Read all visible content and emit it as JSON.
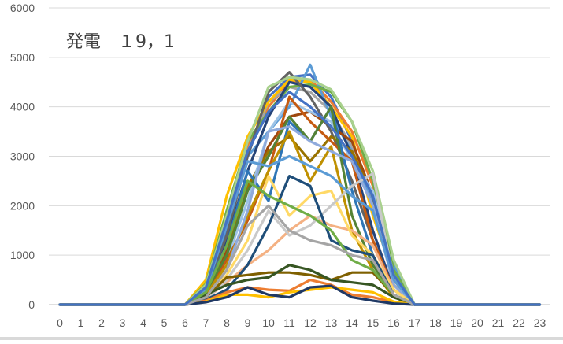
{
  "chart_data": {
    "type": "line",
    "title": "発電　１9，1",
    "xlabel": "",
    "ylabel": "",
    "x": [
      0,
      1,
      2,
      3,
      4,
      5,
      6,
      7,
      8,
      9,
      10,
      11,
      12,
      13,
      14,
      15,
      16,
      17,
      18,
      19,
      20,
      21,
      22,
      23
    ],
    "ylim": [
      0,
      6000
    ],
    "yticks": [
      0,
      1000,
      2000,
      3000,
      4000,
      5000,
      6000
    ],
    "grid": true,
    "legend": "none",
    "series": [
      {
        "color": "#4472C4",
        "values": [
          0,
          0,
          0,
          0,
          0,
          0,
          0,
          400,
          1500,
          3000,
          4200,
          4600,
          4650,
          4200,
          3300,
          2100,
          700,
          0,
          0,
          0,
          0,
          0,
          0,
          0
        ]
      },
      {
        "color": "#ED7D31",
        "values": [
          0,
          0,
          0,
          0,
          0,
          0,
          0,
          450,
          1800,
          3200,
          4000,
          4500,
          4550,
          4100,
          3500,
          2400,
          500,
          0,
          0,
          0,
          0,
          0,
          0,
          0
        ]
      },
      {
        "color": "#A5A5A5",
        "values": [
          0,
          0,
          0,
          0,
          0,
          0,
          0,
          380,
          1700,
          3100,
          4100,
          4400,
          4300,
          3900,
          3200,
          2000,
          400,
          0,
          0,
          0,
          0,
          0,
          0,
          0
        ]
      },
      {
        "color": "#FFC000",
        "values": [
          0,
          0,
          0,
          0,
          0,
          0,
          0,
          500,
          2200,
          3400,
          4100,
          4550,
          4500,
          4000,
          3400,
          1800,
          600,
          0,
          0,
          0,
          0,
          0,
          0,
          0
        ]
      },
      {
        "color": "#5B9BD5",
        "values": [
          0,
          0,
          0,
          0,
          0,
          0,
          0,
          350,
          1600,
          3000,
          3500,
          4000,
          4850,
          3800,
          3100,
          2000,
          800,
          0,
          0,
          0,
          0,
          0,
          0,
          0
        ]
      },
      {
        "color": "#70AD47",
        "values": [
          0,
          0,
          0,
          0,
          0,
          0,
          0,
          420,
          1900,
          3300,
          3900,
          4400,
          4450,
          4300,
          3700,
          2500,
          700,
          0,
          0,
          0,
          0,
          0,
          0,
          0
        ]
      },
      {
        "color": "#264478",
        "values": [
          0,
          0,
          0,
          0,
          0,
          0,
          0,
          300,
          1300,
          2700,
          3800,
          4500,
          4400,
          4000,
          3000,
          1500,
          300,
          0,
          0,
          0,
          0,
          0,
          0,
          0
        ]
      },
      {
        "color": "#9E480E",
        "values": [
          0,
          0,
          0,
          0,
          0,
          0,
          0,
          280,
          1100,
          2300,
          3200,
          3800,
          3900,
          3600,
          3300,
          2200,
          500,
          0,
          0,
          0,
          0,
          0,
          0,
          0
        ]
      },
      {
        "color": "#636363",
        "values": [
          0,
          0,
          0,
          0,
          0,
          0,
          0,
          300,
          1400,
          3000,
          4300,
          4700,
          4200,
          3500,
          2500,
          1300,
          300,
          0,
          0,
          0,
          0,
          0,
          0,
          0
        ]
      },
      {
        "color": "#997300",
        "values": [
          0,
          0,
          0,
          0,
          0,
          0,
          0,
          250,
          1000,
          2400,
          3100,
          3400,
          2900,
          3400,
          3100,
          2200,
          400,
          0,
          0,
          0,
          0,
          0,
          0,
          0
        ]
      },
      {
        "color": "#9DC3E6",
        "values": [
          0,
          0,
          0,
          0,
          0,
          0,
          0,
          200,
          900,
          2100,
          3500,
          4100,
          3900,
          3700,
          2900,
          2300,
          600,
          0,
          0,
          0,
          0,
          0,
          0,
          0
        ]
      },
      {
        "color": "#A9D18E",
        "values": [
          0,
          0,
          0,
          0,
          0,
          0,
          0,
          400,
          1800,
          3300,
          4400,
          4600,
          4550,
          4350,
          3700,
          2700,
          900,
          0,
          0,
          0,
          0,
          0,
          0,
          0
        ]
      },
      {
        "color": "#C55A11",
        "values": [
          0,
          0,
          0,
          0,
          0,
          0,
          0,
          250,
          900,
          1700,
          2700,
          4200,
          3700,
          3300,
          2900,
          1300,
          300,
          0,
          0,
          0,
          0,
          0,
          0,
          0
        ]
      },
      {
        "color": "#2E75B6",
        "values": [
          0,
          0,
          0,
          0,
          0,
          0,
          0,
          300,
          1200,
          2700,
          2100,
          3700,
          3300,
          4000,
          2300,
          1000,
          200,
          0,
          0,
          0,
          0,
          0,
          0,
          0
        ]
      },
      {
        "color": "#548235",
        "values": [
          0,
          0,
          0,
          0,
          0,
          0,
          0,
          250,
          1000,
          2300,
          3000,
          3800,
          3300,
          4000,
          1800,
          800,
          200,
          0,
          0,
          0,
          0,
          0,
          0,
          0
        ]
      },
      {
        "color": "#BF9000",
        "values": [
          0,
          0,
          0,
          0,
          0,
          0,
          0,
          200,
          800,
          1800,
          2700,
          3500,
          2500,
          3200,
          1500,
          700,
          150,
          0,
          0,
          0,
          0,
          0,
          0,
          0
        ]
      },
      {
        "color": "#8FAADC",
        "values": [
          0,
          0,
          0,
          0,
          0,
          0,
          0,
          150,
          700,
          1900,
          3500,
          3600,
          3300,
          3100,
          2900,
          2000,
          400,
          0,
          0,
          0,
          0,
          0,
          0,
          0
        ]
      },
      {
        "color": "#F4B183",
        "values": [
          0,
          0,
          0,
          0,
          0,
          0,
          0,
          120,
          450,
          800,
          1100,
          1500,
          1800,
          1600,
          1500,
          1200,
          300,
          0,
          0,
          0,
          0,
          0,
          0,
          0
        ]
      },
      {
        "color": "#FFD966",
        "values": [
          0,
          0,
          0,
          0,
          0,
          0,
          0,
          150,
          600,
          1300,
          2600,
          1800,
          2200,
          2300,
          1400,
          1000,
          300,
          0,
          0,
          0,
          0,
          0,
          0,
          0
        ]
      },
      {
        "color": "#C9C9C9",
        "values": [
          0,
          0,
          0,
          0,
          0,
          0,
          0,
          100,
          500,
          1100,
          1900,
          1400,
          1600,
          2000,
          2400,
          2650,
          500,
          0,
          0,
          0,
          0,
          0,
          0,
          0
        ]
      },
      {
        "color": "#1F4E79",
        "values": [
          0,
          0,
          0,
          0,
          0,
          0,
          0,
          100,
          300,
          800,
          1600,
          2600,
          2400,
          1300,
          1100,
          1000,
          200,
          0,
          0,
          0,
          0,
          0,
          0,
          0
        ]
      },
      {
        "color": "#7F6000",
        "values": [
          0,
          0,
          0,
          0,
          0,
          0,
          0,
          150,
          550,
          600,
          650,
          650,
          600,
          500,
          650,
          650,
          200,
          0,
          0,
          0,
          0,
          0,
          0,
          0
        ]
      },
      {
        "color": "#375623",
        "values": [
          0,
          0,
          0,
          0,
          0,
          0,
          0,
          200,
          400,
          500,
          550,
          800,
          700,
          500,
          450,
          400,
          150,
          0,
          0,
          0,
          0,
          0,
          0,
          0
        ]
      },
      {
        "color": "#ED7D31",
        "values": [
          0,
          0,
          0,
          0,
          0,
          0,
          0,
          80,
          250,
          350,
          300,
          280,
          500,
          400,
          200,
          150,
          50,
          0,
          0,
          0,
          0,
          0,
          0,
          0
        ]
      },
      {
        "color": "#FFC000",
        "values": [
          0,
          0,
          0,
          0,
          0,
          0,
          0,
          60,
          200,
          200,
          150,
          250,
          300,
          350,
          300,
          250,
          60,
          0,
          0,
          0,
          0,
          0,
          0,
          0
        ]
      },
      {
        "color": "#1F3864",
        "values": [
          0,
          0,
          0,
          0,
          0,
          0,
          0,
          50,
          150,
          350,
          200,
          150,
          350,
          380,
          150,
          80,
          20,
          0,
          0,
          0,
          0,
          0,
          0,
          0
        ]
      },
      {
        "color": "#5B9BD5",
        "values": [
          0,
          0,
          0,
          0,
          0,
          0,
          0,
          300,
          1600,
          2900,
          2800,
          3000,
          2800,
          2600,
          2200,
          1900,
          500,
          0,
          0,
          0,
          0,
          0,
          0,
          0
        ]
      },
      {
        "color": "#70AD47",
        "values": [
          0,
          0,
          0,
          0,
          0,
          0,
          0,
          250,
          1200,
          2500,
          2200,
          2000,
          1800,
          1500,
          900,
          700,
          200,
          0,
          0,
          0,
          0,
          0,
          0,
          0
        ]
      },
      {
        "color": "#A5A5A5",
        "values": [
          0,
          0,
          0,
          0,
          0,
          0,
          0,
          150,
          700,
          1600,
          2000,
          1500,
          1300,
          1200,
          1000,
          900,
          200,
          0,
          0,
          0,
          0,
          0,
          0,
          0
        ]
      },
      {
        "color": "#4472C4",
        "values": [
          0,
          0,
          0,
          0,
          0,
          0,
          0,
          350,
          1700,
          3100,
          3900,
          4300,
          4000,
          3600,
          3000,
          2200,
          600,
          0,
          0,
          0,
          0,
          0,
          0,
          0
        ]
      }
    ]
  }
}
